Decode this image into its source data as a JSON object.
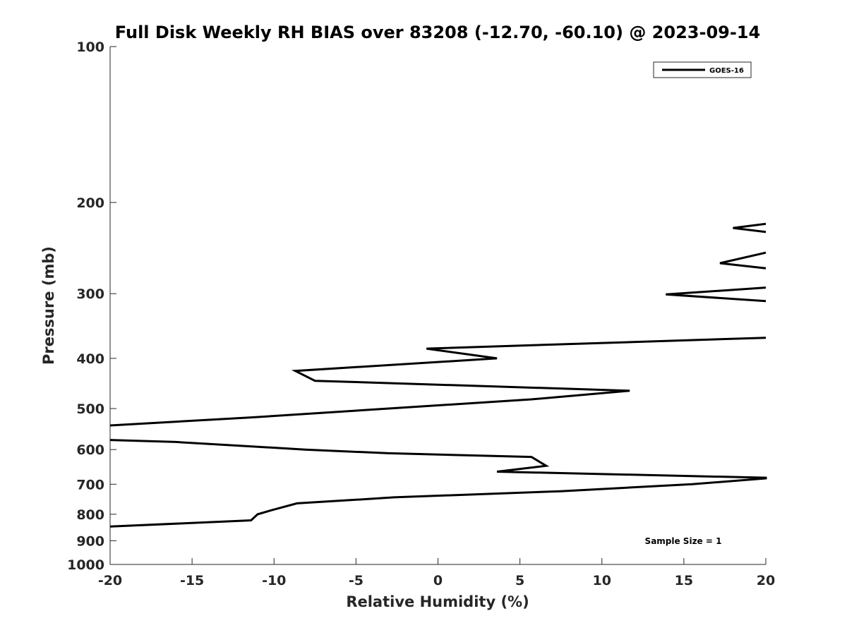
{
  "chart_data": {
    "type": "line",
    "title": "Full Disk Weekly RH BIAS over 83208 (-12.70, -60.10) @ 2023-09-14",
    "xlabel": "Relative Humidity (%)",
    "ylabel": "Pressure (mb)",
    "xlim": [
      -20,
      20
    ],
    "ylim": [
      100,
      1000
    ],
    "y_scale": "log",
    "y_reversed": true,
    "grid": false,
    "legend_position": "top-right",
    "x_ticks": [
      "-20",
      "-15",
      "-10",
      "-5",
      "0",
      "5",
      "10",
      "15",
      "20"
    ],
    "y_ticks": [
      "100",
      "200",
      "300",
      "400",
      "500",
      "600",
      "700",
      "800",
      "900",
      "1000"
    ],
    "annotation": "Sample Size = 1",
    "color": "#000000",
    "series": [
      {
        "name": "GOES-16",
        "segments": [
          [
            [
              20,
              220
            ],
            [
              18,
              224
            ],
            [
              20,
              228
            ]
          ],
          [
            [
              20,
              250
            ],
            [
              17.2,
              262
            ],
            [
              20,
              268
            ]
          ],
          [
            [
              20,
              292
            ],
            [
              13.9,
              301
            ],
            [
              20,
              310
            ]
          ],
          [
            [
              20,
              365
            ],
            [
              -0.7,
              383
            ],
            [
              3.6,
              400
            ],
            [
              -8.7,
              423
            ],
            [
              -7.5,
              442
            ],
            [
              11.7,
              462
            ],
            [
              5.7,
              480
            ],
            [
              -3,
              500
            ],
            [
              -11.3,
              520
            ],
            [
              -20,
              539
            ]
          ],
          [
            [
              -20,
              575
            ],
            [
              -16,
              580
            ],
            [
              -8.1,
              600
            ],
            [
              -3,
              610
            ],
            [
              5.7,
              620
            ],
            [
              6.6,
              645
            ],
            [
              3.6,
              662
            ],
            [
              20,
              680
            ],
            [
              20,
              682
            ],
            [
              15.5,
              700
            ],
            [
              7.5,
              722
            ],
            [
              -2.7,
              742
            ],
            [
              -5,
              750
            ],
            [
              -8.6,
              762
            ],
            [
              -10.1,
              785
            ],
            [
              -11,
              800
            ],
            [
              -11.4,
              822
            ],
            [
              -20,
              845
            ]
          ]
        ]
      }
    ]
  }
}
